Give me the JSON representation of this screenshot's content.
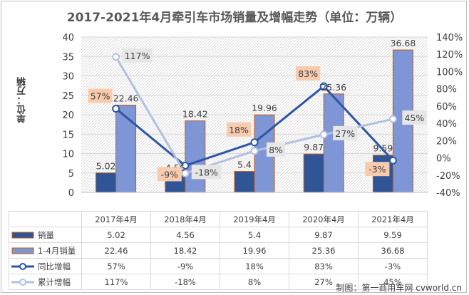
{
  "chart_data": {
    "type": "bar",
    "title": "2017-2021年4月牵引车市场销量及增幅走势（单位：万辆）",
    "ylabel": "单位：万辆",
    "categories": [
      "2017年4月",
      "2018年4月",
      "2019年4月",
      "2020年4月",
      "2021年4月"
    ],
    "y_left": {
      "range": [
        0,
        40
      ],
      "ticks": [
        "0",
        "5",
        "10",
        "15",
        "20",
        "25",
        "30",
        "35",
        "40"
      ]
    },
    "y_right": {
      "range": [
        -40,
        140
      ],
      "ticks": [
        "-40%",
        "-20%",
        "0%",
        "20%",
        "40%",
        "60%",
        "80%",
        "100%",
        "120%",
        "140%"
      ]
    },
    "series": [
      {
        "name": "销量",
        "kind": "bar",
        "axis": "left",
        "color": "#2f5597",
        "values": [
          5.02,
          4.56,
          5.4,
          9.87,
          9.59
        ],
        "labels": [
          "5.02",
          "4.56",
          "5.4",
          "9.87",
          "9.59"
        ]
      },
      {
        "name": "1-4月销量",
        "kind": "bar",
        "axis": "left",
        "color": "#7f96d6",
        "values": [
          22.46,
          18.42,
          19.96,
          25.36,
          36.68
        ],
        "labels": [
          "22.46",
          "18.42",
          "19.96",
          "25.36",
          "36.68"
        ]
      },
      {
        "name": "同比增幅",
        "kind": "line",
        "axis": "right",
        "color": "#2f55a5",
        "values": [
          57,
          -9,
          18,
          83,
          -3
        ],
        "labels": [
          "57%",
          "-9%",
          "18%",
          "83%",
          "-3%"
        ]
      },
      {
        "name": "累计增幅",
        "kind": "line",
        "axis": "right",
        "color": "#b4c0e0",
        "values": [
          117,
          -18,
          8,
          27,
          45
        ],
        "labels": [
          "117%",
          "-18%",
          "8%",
          "27%",
          "45%"
        ]
      }
    ],
    "grid": true,
    "legend": "data-table-below"
  },
  "source": "制图：第一商用车网 cvworld.cn"
}
